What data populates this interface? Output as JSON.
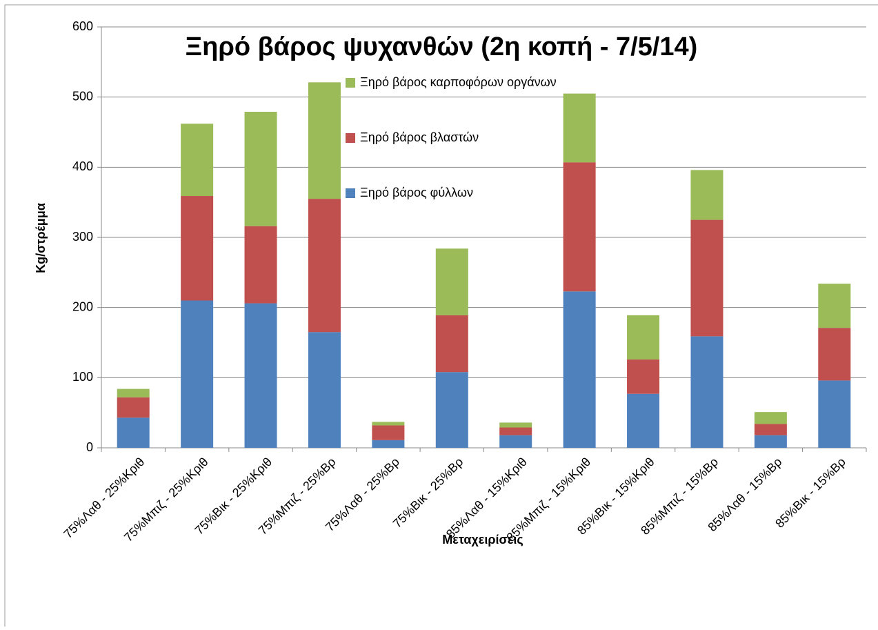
{
  "chart_data": {
    "type": "stacked_bar",
    "title": "Ξηρό βάρος ψυχανθών (2η κοπή - 7/5/14)",
    "x_label": "Μεταχειρίσεις",
    "y_label": "Kg/στρέμμα",
    "categories": [
      "75%Λαθ - 25%Κριθ",
      "75%Μπιζ - 25%Κριθ",
      "75%Βικ - 25%Κριθ",
      "75%Μπιζ - 25%Βρ",
      "75%Λαθ - 25%Βρ",
      "75%Βικ - 25%Βρ",
      "85%Λαθ - 15%Κριθ",
      "85%Μπιζ - 15%Κριθ",
      "85%Βικ - 15%Κριθ",
      "85%Μπιζ - 15%Βρ",
      "85%Λαθ - 15%Βρ",
      "85%Βικ - 15%Βρ"
    ],
    "series": [
      {
        "name": "Ξηρό βάρος φύλλων",
        "color": "#4f81bd",
        "values": [
          43,
          210,
          206,
          165,
          11,
          108,
          18,
          223,
          77,
          159,
          18,
          96
        ]
      },
      {
        "name": "Ξηρό βάρος βλαστών",
        "color": "#c0504d",
        "values": [
          29,
          149,
          110,
          190,
          21,
          81,
          11,
          184,
          49,
          166,
          16,
          75
        ]
      },
      {
        "name": "Ξηρό βάρος καρποφόρων οργάνων",
        "color": "#9bbb59",
        "values": [
          12,
          103,
          163,
          166,
          5,
          95,
          7,
          98,
          63,
          71,
          17,
          63
        ]
      }
    ],
    "ylim": [
      0,
      600
    ],
    "yticks": [
      0,
      100,
      200,
      300,
      400,
      500,
      600
    ],
    "grid": true
  }
}
